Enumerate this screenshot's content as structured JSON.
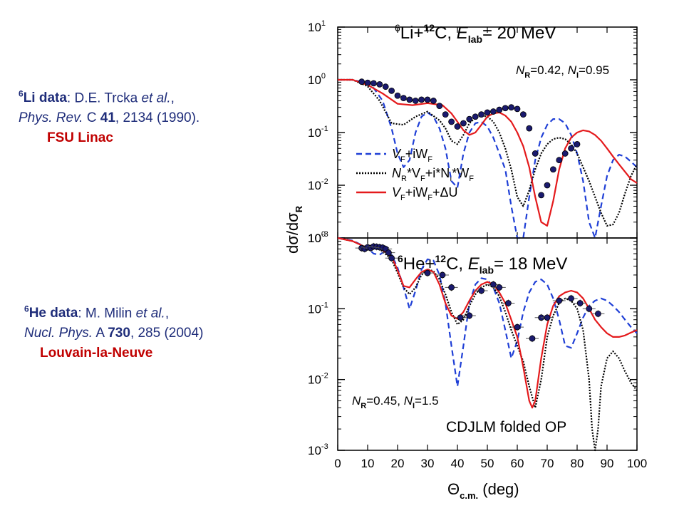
{
  "refs": {
    "li": {
      "sup": "6",
      "name": "Li data",
      "authors": ": D.E. Trcka ",
      "etal": "et al.",
      "comma": ",",
      "journal": "Phys. Rev.",
      "journal_tail": " C ",
      "vol": "41",
      "pages": ", 2134 (1990).",
      "lab": "FSU Linac"
    },
    "he": {
      "sup": "6",
      "name": "He data",
      "authors": ": M. Milin ",
      "etal": "et al.",
      "comma": ",",
      "journal": "Nucl. Phys.",
      "journal_tail": " A ",
      "vol": "730",
      "pages": ", 285 (2004)",
      "lab": "Louvain-la-Neuve"
    }
  },
  "chart_data": [
    {
      "type": "line",
      "panel": "top",
      "title_parts": {
        "sup1": "6",
        "n1": "Li+",
        "sup2": "12",
        "n2": "C, ",
        "e": "E",
        "sub": "lab",
        "tail": "= 20 MeV"
      },
      "norm": {
        "nr": "N",
        "nr_sub": "R",
        "nr_val": "=0.42, ",
        "ni": "N",
        "ni_sub": "I",
        "ni_val": "=0.95"
      },
      "ylabel": "dσ/dσR",
      "y_scale": "log",
      "ylim": [
        0.001,
        10
      ],
      "xlim": [
        0,
        100
      ],
      "y_tick_labels": [
        [
          "10",
          "1"
        ],
        [
          "10",
          "0"
        ],
        [
          "10",
          "-1"
        ],
        [
          "10",
          "-2"
        ],
        [
          "10",
          "-3"
        ]
      ],
      "legend": [
        {
          "parts": [
            "V",
            "F",
            "+iW",
            "F"
          ],
          "color": "#1f3fd6",
          "style": "dashed"
        },
        {
          "parts": [
            "N",
            "R",
            "*V",
            "F",
            "+i*N",
            "I",
            "*W",
            "F"
          ],
          "color": "#000000",
          "style": "dotted"
        },
        {
          "parts": [
            "V",
            "F",
            "+iW",
            "F",
            "+ΔU",
            ""
          ],
          "color": "#e41a1c",
          "style": "solid"
        }
      ],
      "series": [
        {
          "style": "dashed",
          "color": "#1f3fd6",
          "x": [
            0,
            5,
            10,
            12,
            15,
            18,
            20,
            22,
            24,
            26,
            28,
            30,
            32,
            34,
            36,
            38,
            40,
            42,
            44,
            46,
            48,
            50,
            52,
            54,
            56,
            58,
            60,
            62,
            64,
            66,
            68,
            70,
            72,
            74,
            76,
            78,
            80,
            82,
            84,
            86,
            88,
            90,
            92,
            94,
            96,
            98,
            100
          ],
          "y": [
            1.0,
            1.0,
            0.85,
            0.7,
            0.4,
            0.12,
            0.04,
            0.022,
            0.03,
            0.1,
            0.2,
            0.24,
            0.2,
            0.12,
            0.05,
            0.012,
            0.009,
            0.04,
            0.1,
            0.15,
            0.16,
            0.13,
            0.08,
            0.04,
            0.02,
            0.004,
            0.0006,
            0.0008,
            0.006,
            0.03,
            0.08,
            0.14,
            0.18,
            0.18,
            0.15,
            0.09,
            0.04,
            0.012,
            0.002,
            0.001,
            0.004,
            0.015,
            0.03,
            0.038,
            0.035,
            0.028,
            0.022
          ]
        },
        {
          "style": "dotted",
          "color": "#000000",
          "x": [
            0,
            5,
            10,
            14,
            18,
            22,
            26,
            30,
            34,
            36,
            38,
            40,
            42,
            44,
            46,
            48,
            50,
            52,
            54,
            56,
            58,
            60,
            62,
            64,
            66,
            68,
            70,
            72,
            74,
            76,
            78,
            80,
            82,
            84,
            86,
            88,
            90,
            92,
            94,
            96,
            98,
            100
          ],
          "y": [
            1.0,
            1.0,
            0.75,
            0.4,
            0.15,
            0.14,
            0.2,
            0.25,
            0.17,
            0.12,
            0.07,
            0.06,
            0.09,
            0.15,
            0.19,
            0.21,
            0.2,
            0.16,
            0.1,
            0.05,
            0.02,
            0.006,
            0.004,
            0.008,
            0.02,
            0.04,
            0.06,
            0.075,
            0.08,
            0.075,
            0.06,
            0.04,
            0.022,
            0.012,
            0.006,
            0.003,
            0.0017,
            0.0018,
            0.003,
            0.007,
            0.015,
            0.025
          ]
        },
        {
          "style": "solid",
          "color": "#e41a1c",
          "x": [
            0,
            5,
            10,
            15,
            20,
            25,
            30,
            35,
            38,
            40,
            42,
            44,
            46,
            48,
            50,
            52,
            54,
            56,
            58,
            60,
            62,
            64,
            66,
            68,
            70,
            72,
            74,
            76,
            78,
            80,
            82,
            84,
            86,
            88,
            90,
            92,
            94,
            96,
            98,
            100
          ],
          "y": [
            1.0,
            1.0,
            0.8,
            0.55,
            0.35,
            0.33,
            0.36,
            0.33,
            0.23,
            0.16,
            0.11,
            0.09,
            0.1,
            0.14,
            0.2,
            0.23,
            0.24,
            0.21,
            0.16,
            0.1,
            0.055,
            0.022,
            0.006,
            0.002,
            0.0017,
            0.005,
            0.02,
            0.05,
            0.08,
            0.1,
            0.11,
            0.105,
            0.09,
            0.07,
            0.05,
            0.035,
            0.025,
            0.018,
            0.013,
            0.011
          ]
        },
        {
          "style": "points",
          "color": "#1a1a6e",
          "x": [
            8,
            10,
            12,
            14,
            16,
            18,
            20,
            22,
            24,
            26,
            28,
            30,
            32,
            34,
            36,
            38,
            40,
            42,
            44,
            46,
            48,
            50,
            52,
            54,
            56,
            58,
            60,
            62,
            64,
            66,
            68,
            70,
            72,
            74,
            76,
            78,
            80
          ],
          "y": [
            0.92,
            0.88,
            0.86,
            0.82,
            0.74,
            0.62,
            0.5,
            0.45,
            0.42,
            0.4,
            0.42,
            0.42,
            0.4,
            0.32,
            0.22,
            0.16,
            0.13,
            0.15,
            0.18,
            0.2,
            0.22,
            0.24,
            0.25,
            0.27,
            0.29,
            0.3,
            0.28,
            0.22,
            0.12,
            0.04,
            0.0065,
            0.01,
            0.02,
            0.03,
            0.04,
            0.05,
            0.06
          ]
        }
      ]
    },
    {
      "type": "line",
      "panel": "bottom",
      "title_parts": {
        "sup1": "6",
        "n1": "He+",
        "sup2": "12",
        "n2": "C, ",
        "e": "E",
        "sub": "lab",
        "tail": "= 18 MeV"
      },
      "norm": {
        "nr": "N",
        "nr_sub": "R",
        "nr_val": "=0.45, ",
        "ni": "N",
        "ni_sub": "I",
        "ni_val": "=1.5"
      },
      "note": "CDJLM folded OP",
      "xlabel": "Θc.m. (deg)",
      "y_scale": "log",
      "ylim": [
        0.001,
        1
      ],
      "xlim": [
        0,
        100
      ],
      "x_tick_labels": [
        "0",
        "10",
        "20",
        "30",
        "40",
        "50",
        "60",
        "70",
        "80",
        "90",
        "100"
      ],
      "y_tick_labels": [
        [
          "10",
          "0"
        ],
        [
          "10",
          "-1"
        ],
        [
          "10",
          "-2"
        ],
        [
          "10",
          "-3"
        ]
      ],
      "series": [
        {
          "style": "dashed",
          "color": "#1f3fd6",
          "x": [
            0,
            5,
            10,
            12,
            14,
            16,
            18,
            20,
            22,
            24,
            26,
            28,
            30,
            32,
            34,
            36,
            38,
            40,
            42,
            44,
            46,
            48,
            50,
            52,
            54,
            56,
            58,
            60,
            62,
            64,
            66,
            68,
            70,
            72,
            74,
            76,
            78,
            80,
            82,
            84,
            86,
            88,
            90,
            92,
            94,
            96,
            98,
            100
          ],
          "y": [
            1.0,
            0.92,
            0.72,
            0.6,
            0.58,
            0.66,
            0.58,
            0.38,
            0.2,
            0.1,
            0.18,
            0.36,
            0.5,
            0.48,
            0.3,
            0.12,
            0.03,
            0.008,
            0.03,
            0.12,
            0.22,
            0.27,
            0.26,
            0.2,
            0.12,
            0.05,
            0.02,
            0.035,
            0.09,
            0.17,
            0.24,
            0.26,
            0.22,
            0.14,
            0.07,
            0.03,
            0.028,
            0.045,
            0.075,
            0.11,
            0.13,
            0.14,
            0.13,
            0.11,
            0.09,
            0.07,
            0.055,
            0.045
          ]
        },
        {
          "style": "dotted",
          "color": "#000000",
          "x": [
            0,
            5,
            10,
            14,
            18,
            20,
            22,
            24,
            26,
            28,
            30,
            32,
            34,
            36,
            38,
            40,
            42,
            44,
            46,
            48,
            50,
            52,
            54,
            56,
            58,
            60,
            62,
            64,
            66,
            68,
            70,
            72,
            74,
            76,
            78,
            80,
            82,
            84,
            85,
            86,
            87,
            88,
            90,
            92,
            94,
            96,
            98,
            100
          ],
          "y": [
            1.0,
            0.9,
            0.72,
            0.7,
            0.5,
            0.32,
            0.2,
            0.16,
            0.2,
            0.3,
            0.36,
            0.34,
            0.26,
            0.16,
            0.09,
            0.06,
            0.07,
            0.11,
            0.16,
            0.2,
            0.22,
            0.2,
            0.15,
            0.09,
            0.05,
            0.03,
            0.018,
            0.008,
            0.004,
            0.01,
            0.04,
            0.08,
            0.12,
            0.14,
            0.13,
            0.1,
            0.05,
            0.01,
            0.002,
            0.0006,
            0.002,
            0.008,
            0.02,
            0.025,
            0.02,
            0.013,
            0.009,
            0.007
          ]
        },
        {
          "style": "solid",
          "color": "#e41a1c",
          "x": [
            0,
            5,
            10,
            14,
            18,
            20,
            22,
            24,
            26,
            28,
            30,
            32,
            34,
            36,
            38,
            40,
            42,
            44,
            46,
            48,
            50,
            52,
            54,
            56,
            58,
            60,
            62,
            64,
            65,
            66,
            68,
            70,
            72,
            74,
            76,
            78,
            80,
            82,
            84,
            86,
            88,
            90,
            92,
            94,
            96,
            98,
            100
          ],
          "y": [
            1.0,
            0.9,
            0.72,
            0.72,
            0.55,
            0.35,
            0.21,
            0.2,
            0.26,
            0.33,
            0.36,
            0.33,
            0.22,
            0.12,
            0.08,
            0.072,
            0.09,
            0.13,
            0.18,
            0.22,
            0.24,
            0.22,
            0.17,
            0.12,
            0.07,
            0.04,
            0.015,
            0.005,
            0.004,
            0.005,
            0.02,
            0.06,
            0.11,
            0.15,
            0.17,
            0.18,
            0.17,
            0.14,
            0.1,
            0.07,
            0.055,
            0.045,
            0.04,
            0.04,
            0.042,
            0.046,
            0.05
          ]
        },
        {
          "style": "points",
          "color": "#1a1a6e",
          "x": [
            8,
            9,
            10,
            11,
            12,
            13,
            14,
            15,
            16,
            17,
            18,
            30,
            35,
            38,
            41,
            44,
            48,
            52,
            54,
            57,
            60,
            65,
            68,
            70,
            74,
            78,
            81,
            84,
            87
          ],
          "y": [
            0.72,
            0.7,
            0.74,
            0.72,
            0.76,
            0.75,
            0.74,
            0.73,
            0.7,
            0.62,
            0.52,
            0.32,
            0.3,
            0.2,
            0.075,
            0.08,
            0.18,
            0.22,
            0.2,
            0.12,
            0.055,
            0.038,
            0.075,
            0.075,
            0.13,
            0.14,
            0.12,
            0.1,
            0.085
          ]
        }
      ]
    }
  ]
}
